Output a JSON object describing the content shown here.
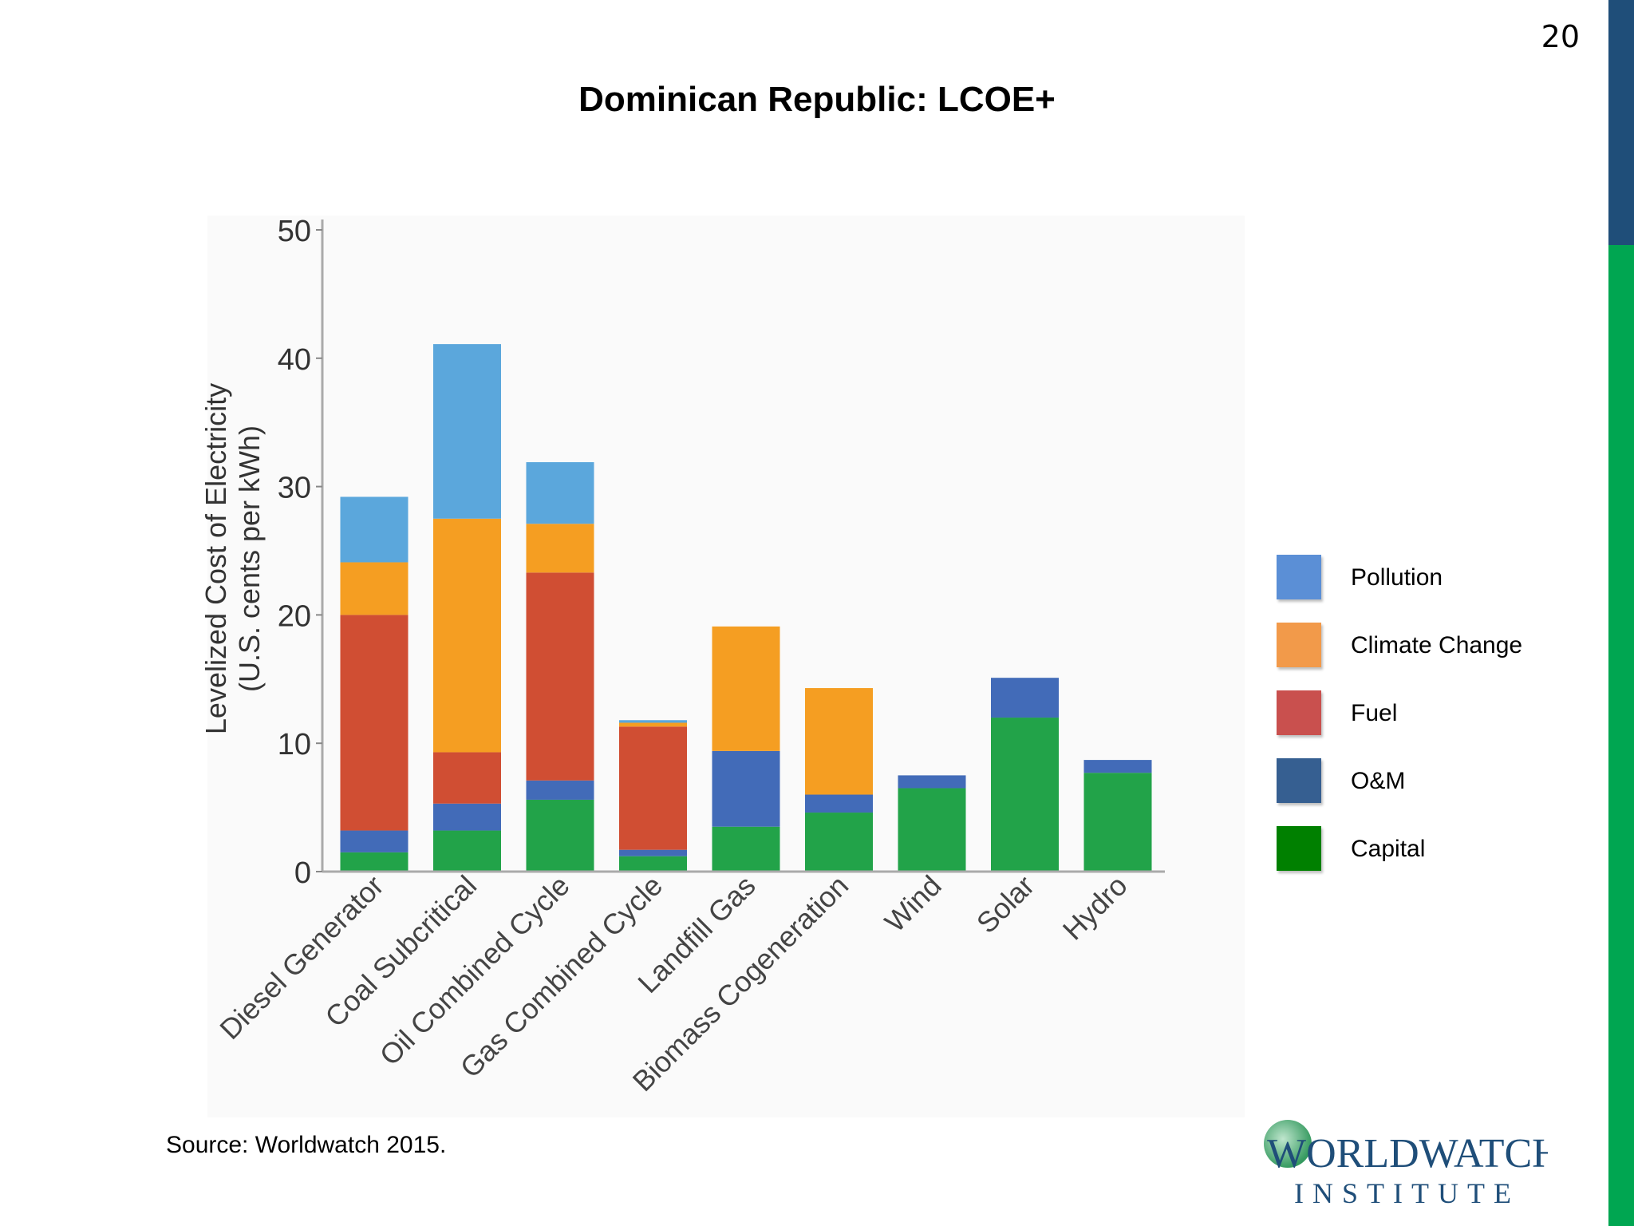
{
  "slide": {
    "number": "20",
    "title": "Dominican Republic: LCOE+",
    "source": "Source: Worldwatch 2015.",
    "logo": {
      "line1": "WORLDWATCH",
      "line2": "INSTITUTE"
    }
  },
  "legend": [
    {
      "label": "Pollution",
      "color": "#5b8fd6"
    },
    {
      "label": "Climate Change",
      "color": "#f29a4a"
    },
    {
      "label": "Fuel",
      "color": "#c9504e"
    },
    {
      "label": "O&M",
      "color": "#365f91"
    },
    {
      "label": "Capital",
      "color": "#008000"
    }
  ],
  "chart_data": {
    "type": "bar",
    "stacked": true,
    "ylabel_line1": "Levelized Cost of Electricity",
    "ylabel_line2": "(U.S. cents per kWh)",
    "ylim": [
      0,
      50
    ],
    "yticks": [
      0,
      10,
      20,
      30,
      40,
      50
    ],
    "categories": [
      "Diesel Generator",
      "Coal Subcritical",
      "Oil Combined Cycle",
      "Gas Combined Cycle",
      "Landfill Gas",
      "Biomass Cogeneration",
      "Wind",
      "Solar",
      "Hydro"
    ],
    "series": [
      {
        "name": "Capital",
        "color": "#22a349",
        "values": [
          1.5,
          3.2,
          5.6,
          1.2,
          3.5,
          4.6,
          6.5,
          12.0,
          7.7
        ]
      },
      {
        "name": "O&M",
        "color": "#426bb8",
        "values": [
          1.7,
          2.1,
          1.5,
          0.5,
          5.9,
          1.4,
          1.0,
          3.1,
          1.0
        ]
      },
      {
        "name": "Fuel",
        "color": "#d04e33",
        "values": [
          16.8,
          4.0,
          16.2,
          9.6,
          0,
          0,
          0,
          0,
          0
        ]
      },
      {
        "name": "Climate Change",
        "color": "#f59e22",
        "values": [
          4.1,
          18.2,
          3.8,
          0.3,
          9.7,
          8.3,
          0,
          0,
          0
        ]
      },
      {
        "name": "Pollution",
        "color": "#5ba7dc",
        "values": [
          5.1,
          13.6,
          4.8,
          0.2,
          0,
          0,
          0,
          0,
          0
        ]
      }
    ]
  }
}
